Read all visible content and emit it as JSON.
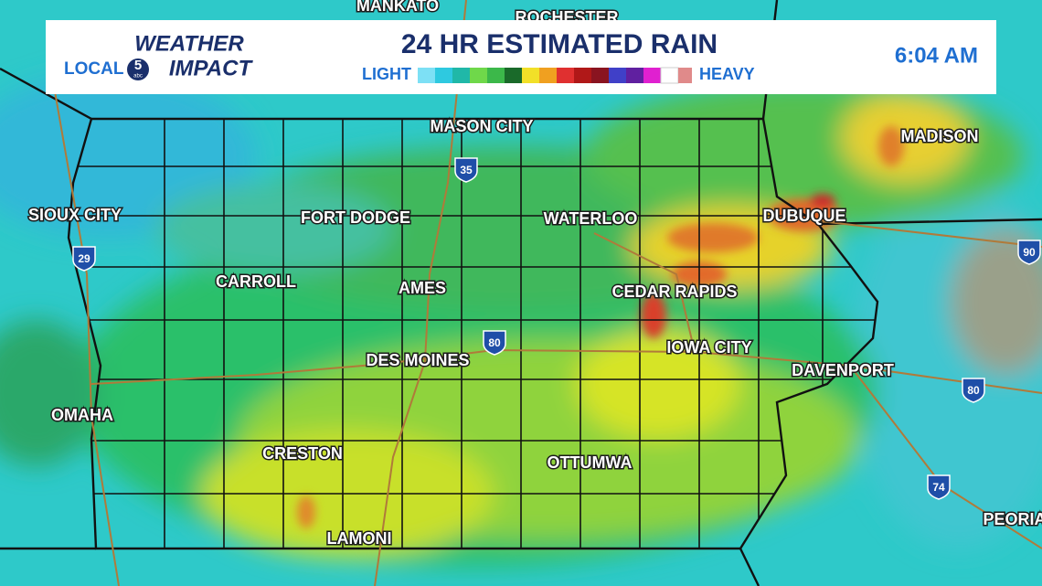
{
  "header": {
    "logo": {
      "weather": "WEATHER",
      "local": "LOCAL",
      "channel": "5",
      "network": "abc",
      "impact": "IMPACT"
    },
    "title": "24 HR ESTIMATED RAIN",
    "legend": {
      "light": "LIGHT",
      "heavy": "HEAVY"
    },
    "time": "6:04 AM"
  },
  "map": {
    "cities": [
      "MANKATO",
      "ROCHESTER",
      "MASON CITY",
      "MADISON",
      "SIOUX CITY",
      "FORT DODGE",
      "WATERLOO",
      "DUBUQUE",
      "CARROLL",
      "AMES",
      "CEDAR RAPIDS",
      "IOWA CITY",
      "DES MOINES",
      "DAVENPORT",
      "OMAHA",
      "CRESTON",
      "OTTUMWA",
      "LAMONI",
      "PEORIA"
    ],
    "interstates": [
      "35",
      "29",
      "80",
      "90",
      "80",
      "74"
    ]
  }
}
